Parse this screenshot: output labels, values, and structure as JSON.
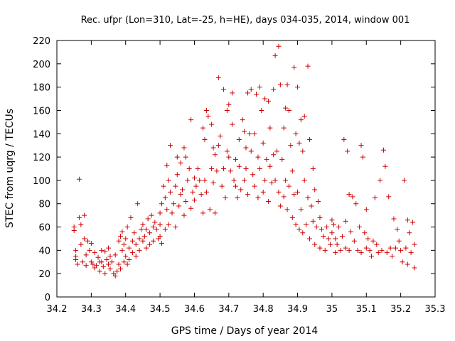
{
  "chart_data": {
    "type": "scatter",
    "title": "Rec. ufpr (Lon=310, Lat=-25, h=HE), days 034-035, 2014, window 001",
    "xlabel": "GPS time / Days of year 2014",
    "ylabel": "STEC from uqrg / TECUs",
    "xlim": [
      34.2,
      35.3
    ],
    "ylim": [
      0,
      220
    ],
    "x_ticks": [
      "34.2",
      "34.3",
      "34.4",
      "34.5",
      "34.6",
      "34.7",
      "34.8",
      "34.9",
      "35",
      "35.1",
      "35.2",
      "35.3"
    ],
    "y_ticks": [
      "0",
      "20",
      "40",
      "60",
      "80",
      "100",
      "120",
      "140",
      "160",
      "180",
      "200",
      "220"
    ],
    "grid": false,
    "legend": "none",
    "marker": "plus",
    "color": "#cc0000",
    "series": [
      {
        "points": [
          [
            34.25,
            60
          ],
          [
            34.25,
            57
          ],
          [
            34.255,
            40
          ],
          [
            34.255,
            35
          ],
          [
            34.255,
            32
          ],
          [
            34.26,
            28
          ],
          [
            34.265,
            101
          ],
          [
            34.265,
            68
          ],
          [
            34.27,
            62
          ],
          [
            34.27,
            45
          ],
          [
            34.275,
            30
          ],
          [
            34.28,
            70
          ],
          [
            34.28,
            50
          ],
          [
            34.285,
            36
          ],
          [
            34.285,
            27
          ],
          [
            34.29,
            48
          ],
          [
            34.295,
            40
          ],
          [
            34.3,
            46
          ],
          [
            34.3,
            30
          ],
          [
            34.305,
            28
          ],
          [
            34.31,
            38
          ],
          [
            34.31,
            25
          ],
          [
            34.315,
            27
          ],
          [
            34.32,
            34
          ],
          [
            34.325,
            30
          ],
          [
            34.325,
            22
          ],
          [
            34.33,
            40
          ],
          [
            34.33,
            30
          ],
          [
            34.335,
            26
          ],
          [
            34.34,
            39
          ],
          [
            34.34,
            20
          ],
          [
            34.345,
            32
          ],
          [
            34.35,
            42
          ],
          [
            34.35,
            28
          ],
          [
            34.355,
            35
          ],
          [
            34.355,
            24
          ],
          [
            34.36,
            30
          ],
          [
            34.365,
            20
          ],
          [
            34.37,
            36
          ],
          [
            34.37,
            18
          ],
          [
            34.375,
            22
          ],
          [
            34.38,
            48
          ],
          [
            34.38,
            28
          ],
          [
            34.385,
            52
          ],
          [
            34.385,
            24
          ],
          [
            34.39,
            56
          ],
          [
            34.39,
            40
          ],
          [
            34.395,
            45
          ],
          [
            34.395,
            30
          ],
          [
            34.4,
            50
          ],
          [
            34.4,
            35
          ],
          [
            34.405,
            60
          ],
          [
            34.405,
            28
          ],
          [
            34.41,
            42
          ],
          [
            34.41,
            32
          ],
          [
            34.415,
            68
          ],
          [
            34.42,
            48
          ],
          [
            34.42,
            38
          ],
          [
            34.425,
            55
          ],
          [
            34.43,
            45
          ],
          [
            34.43,
            35
          ],
          [
            34.435,
            80
          ],
          [
            34.44,
            50
          ],
          [
            34.44,
            40
          ],
          [
            34.445,
            58
          ],
          [
            34.45,
            62
          ],
          [
            34.45,
            48
          ],
          [
            34.455,
            52
          ],
          [
            34.46,
            58
          ],
          [
            34.46,
            42
          ],
          [
            34.465,
            67
          ],
          [
            34.47,
            55
          ],
          [
            34.47,
            45
          ],
          [
            34.475,
            70
          ],
          [
            34.48,
            60
          ],
          [
            34.48,
            48
          ],
          [
            34.485,
            64
          ],
          [
            34.49,
            58
          ],
          [
            34.495,
            50
          ],
          [
            34.5,
            72
          ],
          [
            34.5,
            62
          ],
          [
            34.5,
            52
          ],
          [
            34.505,
            80
          ],
          [
            34.505,
            46
          ],
          [
            34.51,
            95
          ],
          [
            34.515,
            85
          ],
          [
            34.515,
            58
          ],
          [
            34.52,
            113
          ],
          [
            34.52,
            75
          ],
          [
            34.525,
            100
          ],
          [
            34.525,
            62
          ],
          [
            34.53,
            130
          ],
          [
            34.53,
            90
          ],
          [
            34.535,
            72
          ],
          [
            34.54,
            80
          ],
          [
            34.545,
            95
          ],
          [
            34.545,
            60
          ],
          [
            34.55,
            120
          ],
          [
            34.55,
            105
          ],
          [
            34.555,
            78
          ],
          [
            34.56,
            115
          ],
          [
            34.56,
            88
          ],
          [
            34.565,
            92
          ],
          [
            34.57,
            128
          ],
          [
            34.57,
            70
          ],
          [
            34.575,
            120
          ],
          [
            34.575,
            82
          ],
          [
            34.58,
            100
          ],
          [
            34.585,
            110
          ],
          [
            34.59,
            152
          ],
          [
            34.59,
            76
          ],
          [
            34.595,
            90
          ],
          [
            34.6,
            102
          ],
          [
            34.6,
            83
          ],
          [
            34.605,
            95
          ],
          [
            34.61,
            110
          ],
          [
            34.615,
            100
          ],
          [
            34.62,
            88
          ],
          [
            34.625,
            145
          ],
          [
            34.625,
            72
          ],
          [
            34.63,
            135
          ],
          [
            34.63,
            100
          ],
          [
            34.635,
            160
          ],
          [
            34.635,
            90
          ],
          [
            34.64,
            155
          ],
          [
            34.645,
            75
          ],
          [
            34.65,
            148
          ],
          [
            34.65,
            110
          ],
          [
            34.655,
            128
          ],
          [
            34.655,
            98
          ],
          [
            34.66,
            122
          ],
          [
            34.66,
            72
          ],
          [
            34.665,
            108
          ],
          [
            34.67,
            188
          ],
          [
            34.67,
            130
          ],
          [
            34.675,
            138
          ],
          [
            34.68,
            95
          ],
          [
            34.685,
            178
          ],
          [
            34.685,
            110
          ],
          [
            34.69,
            85
          ],
          [
            34.695,
            160
          ],
          [
            34.695,
            125
          ],
          [
            34.7,
            165
          ],
          [
            34.7,
            120
          ],
          [
            34.705,
            108
          ],
          [
            34.71,
            175
          ],
          [
            34.71,
            148
          ],
          [
            34.715,
            100
          ],
          [
            34.72,
            118
          ],
          [
            34.72,
            95
          ],
          [
            34.725,
            85
          ],
          [
            34.73,
            135
          ],
          [
            34.73,
            112
          ],
          [
            34.735,
            92
          ],
          [
            34.74,
            152
          ],
          [
            34.745,
            142
          ],
          [
            34.745,
            100
          ],
          [
            34.75,
            128
          ],
          [
            34.75,
            110
          ],
          [
            34.755,
            175
          ],
          [
            34.755,
            88
          ],
          [
            34.76,
            140
          ],
          [
            34.765,
            178
          ],
          [
            34.765,
            125
          ],
          [
            34.77,
            105
          ],
          [
            34.775,
            140
          ],
          [
            34.775,
            95
          ],
          [
            34.78,
            174
          ],
          [
            34.785,
            120
          ],
          [
            34.785,
            85
          ],
          [
            34.79,
            180
          ],
          [
            34.79,
            110
          ],
          [
            34.795,
            160
          ],
          [
            34.8,
            132
          ],
          [
            34.8,
            90
          ],
          [
            34.805,
            170
          ],
          [
            34.805,
            100
          ],
          [
            34.81,
            118
          ],
          [
            34.815,
            168
          ],
          [
            34.815,
            82
          ],
          [
            34.82,
            145
          ],
          [
            34.82,
            112
          ],
          [
            34.825,
            98
          ],
          [
            34.83,
            178
          ],
          [
            34.83,
            122
          ],
          [
            34.835,
            207
          ],
          [
            34.835,
            100
          ],
          [
            34.84,
            125
          ],
          [
            34.845,
            215
          ],
          [
            34.845,
            90
          ],
          [
            34.85,
            182
          ],
          [
            34.85,
            78
          ],
          [
            34.855,
            118
          ],
          [
            34.86,
            145
          ],
          [
            34.86,
            86
          ],
          [
            34.865,
            162
          ],
          [
            34.865,
            100
          ],
          [
            34.87,
            182
          ],
          [
            34.87,
            75
          ],
          [
            34.875,
            160
          ],
          [
            34.875,
            95
          ],
          [
            34.88,
            130
          ],
          [
            34.885,
            108
          ],
          [
            34.885,
            68
          ],
          [
            34.89,
            197
          ],
          [
            34.89,
            88
          ],
          [
            34.895,
            140
          ],
          [
            34.895,
            62
          ],
          [
            34.9,
            180
          ],
          [
            34.9,
            90
          ],
          [
            34.905,
            132
          ],
          [
            34.905,
            58
          ],
          [
            34.91,
            152
          ],
          [
            34.91,
            75
          ],
          [
            34.915,
            125
          ],
          [
            34.915,
            55
          ],
          [
            34.92,
            155
          ],
          [
            34.92,
            100
          ],
          [
            34.925,
            62
          ],
          [
            34.93,
            198
          ],
          [
            34.93,
            85
          ],
          [
            34.935,
            135
          ],
          [
            34.935,
            50
          ],
          [
            34.94,
            78
          ],
          [
            34.945,
            110
          ],
          [
            34.945,
            65
          ],
          [
            34.95,
            92
          ],
          [
            34.95,
            45
          ],
          [
            34.955,
            60
          ],
          [
            34.96,
            82
          ],
          [
            34.965,
            68
          ],
          [
            34.965,
            42
          ],
          [
            34.97,
            58
          ],
          [
            34.975,
            52
          ],
          [
            34.98,
            40
          ],
          [
            34.985,
            60
          ],
          [
            34.99,
            50
          ],
          [
            34.995,
            45
          ],
          [
            35.0,
            66
          ],
          [
            35.0,
            55
          ],
          [
            35.005,
            62
          ],
          [
            35.01,
            50
          ],
          [
            35.01,
            38
          ],
          [
            35.015,
            45
          ],
          [
            35.02,
            60
          ],
          [
            35.025,
            40
          ],
          [
            35.03,
            52
          ],
          [
            35.035,
            135
          ],
          [
            35.04,
            65
          ],
          [
            35.04,
            42
          ],
          [
            35.045,
            125
          ],
          [
            35.05,
            88
          ],
          [
            35.05,
            40
          ],
          [
            35.055,
            56
          ],
          [
            35.06,
            86
          ],
          [
            35.065,
            48
          ],
          [
            35.07,
            80
          ],
          [
            35.075,
            40
          ],
          [
            35.08,
            60
          ],
          [
            35.085,
            130
          ],
          [
            35.085,
            38
          ],
          [
            35.09,
            120
          ],
          [
            35.095,
            55
          ],
          [
            35.1,
            75
          ],
          [
            35.1,
            42
          ],
          [
            35.105,
            50
          ],
          [
            35.11,
            40
          ],
          [
            35.115,
            35
          ],
          [
            35.12,
            48
          ],
          [
            35.125,
            85
          ],
          [
            35.13,
            45
          ],
          [
            35.135,
            38
          ],
          [
            35.14,
            100
          ],
          [
            35.145,
            40
          ],
          [
            35.15,
            126
          ],
          [
            35.155,
            112
          ],
          [
            35.16,
            38
          ],
          [
            35.165,
            86
          ],
          [
            35.17,
            42
          ],
          [
            35.175,
            35
          ],
          [
            35.18,
            67
          ],
          [
            35.185,
            42
          ],
          [
            35.19,
            58
          ],
          [
            35.195,
            48
          ],
          [
            35.2,
            40
          ],
          [
            35.205,
            30
          ],
          [
            35.21,
            100
          ],
          [
            35.215,
            42
          ],
          [
            35.22,
            66
          ],
          [
            35.22,
            28
          ],
          [
            35.225,
            55
          ],
          [
            35.23,
            38
          ],
          [
            35.235,
            64
          ],
          [
            35.24,
            45
          ],
          [
            35.24,
            25
          ]
        ]
      }
    ]
  }
}
